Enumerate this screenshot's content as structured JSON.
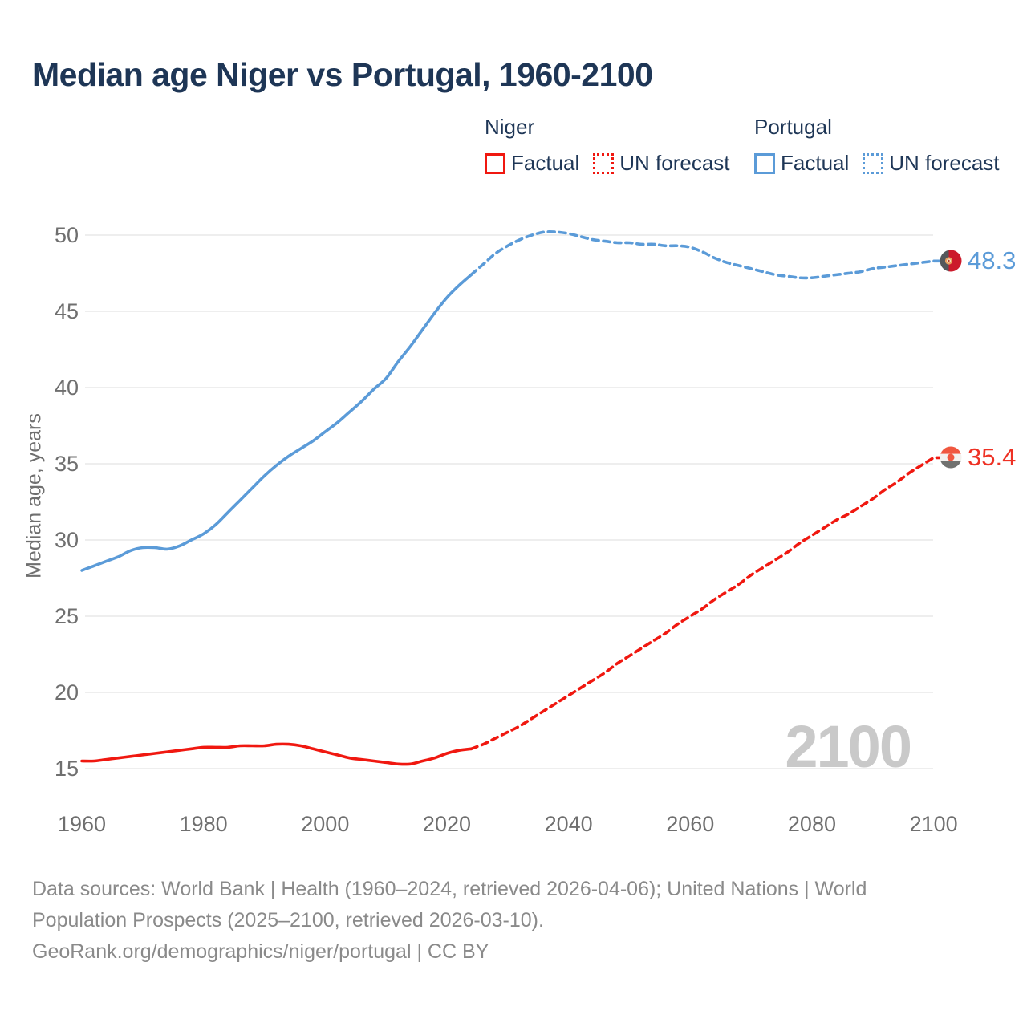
{
  "title": "Median age Niger vs Portugal, 1960-2100",
  "legend": {
    "niger": {
      "label": "Niger",
      "factual": "Factual",
      "forecast": "UN forecast",
      "color": "#f01810"
    },
    "portugal": {
      "label": "Portugal",
      "factual": "Factual",
      "forecast": "UN forecast",
      "color": "#5b9bd8"
    }
  },
  "y_axis": {
    "label": "Median age, years",
    "ticks": [
      50,
      45,
      40,
      35,
      30,
      25,
      20,
      15
    ]
  },
  "x_axis": {
    "ticks": [
      1960,
      1980,
      2000,
      2020,
      2040,
      2060,
      2080,
      2100
    ]
  },
  "end_labels": {
    "portugal": "48.3",
    "niger": "35.4"
  },
  "end_label_colors": {
    "portugal": "#5b9bd8",
    "niger": "#ee3124"
  },
  "watermark": "2100",
  "footer": {
    "line1": "Data sources: World Bank | Health (1960–2024, retrieved 2026-04-06); United Nations | World",
    "line2": "Population Prospects (2025–2100, retrieved 2026-03-10).",
    "line3": "GeoRank.org/demographics/niger/portugal | CC BY"
  },
  "chart_data": {
    "type": "line",
    "title": "Median age Niger vs Portugal, 1960-2100",
    "xlabel": "",
    "ylabel": "Median age, years",
    "xlim": [
      1960,
      2100
    ],
    "ylim": [
      15,
      50
    ],
    "grid": "horizontal",
    "legend_position": "top",
    "series": [
      {
        "name": "Portugal factual",
        "style": "solid",
        "color": "#5b9bd8",
        "x": [
          1960,
          1962,
          1964,
          1966,
          1968,
          1970,
          1972,
          1974,
          1976,
          1978,
          1980,
          1982,
          1984,
          1986,
          1988,
          1990,
          1992,
          1994,
          1996,
          1998,
          2000,
          2002,
          2004,
          2006,
          2008,
          2010,
          2012,
          2014,
          2016,
          2018,
          2020,
          2022,
          2024
        ],
        "y": [
          28.0,
          28.3,
          28.6,
          28.9,
          29.3,
          29.5,
          29.5,
          29.4,
          29.6,
          30.0,
          30.4,
          31.0,
          31.8,
          32.6,
          33.4,
          34.2,
          34.9,
          35.5,
          36.0,
          36.5,
          37.1,
          37.7,
          38.4,
          39.1,
          39.9,
          40.6,
          41.7,
          42.7,
          43.8,
          44.9,
          45.9,
          46.7,
          47.4
        ]
      },
      {
        "name": "Portugal UN forecast",
        "style": "dashed",
        "color": "#5b9bd8",
        "x": [
          2024,
          2026,
          2028,
          2030,
          2032,
          2034,
          2036,
          2038,
          2040,
          2042,
          2044,
          2046,
          2048,
          2050,
          2052,
          2054,
          2056,
          2058,
          2060,
          2062,
          2064,
          2066,
          2068,
          2070,
          2072,
          2074,
          2076,
          2078,
          2080,
          2082,
          2084,
          2086,
          2088,
          2090,
          2092,
          2094,
          2096,
          2098,
          2100
        ],
        "y": [
          47.4,
          48.1,
          48.8,
          49.3,
          49.7,
          50.0,
          50.2,
          50.2,
          50.1,
          49.9,
          49.7,
          49.6,
          49.5,
          49.5,
          49.4,
          49.4,
          49.3,
          49.3,
          49.2,
          48.9,
          48.5,
          48.2,
          48.0,
          47.8,
          47.6,
          47.4,
          47.3,
          47.2,
          47.2,
          47.3,
          47.4,
          47.5,
          47.6,
          47.8,
          47.9,
          48.0,
          48.1,
          48.2,
          48.3
        ]
      },
      {
        "name": "Niger factual",
        "style": "solid",
        "color": "#f01810",
        "x": [
          1960,
          1962,
          1964,
          1966,
          1968,
          1970,
          1972,
          1974,
          1976,
          1978,
          1980,
          1982,
          1984,
          1986,
          1988,
          1990,
          1992,
          1994,
          1996,
          1998,
          2000,
          2002,
          2004,
          2006,
          2008,
          2010,
          2012,
          2014,
          2016,
          2018,
          2020,
          2022,
          2024
        ],
        "y": [
          15.5,
          15.5,
          15.6,
          15.7,
          15.8,
          15.9,
          16.0,
          16.1,
          16.2,
          16.3,
          16.4,
          16.4,
          16.4,
          16.5,
          16.5,
          16.5,
          16.6,
          16.6,
          16.5,
          16.3,
          16.1,
          15.9,
          15.7,
          15.6,
          15.5,
          15.4,
          15.3,
          15.3,
          15.5,
          15.7,
          16.0,
          16.2,
          16.3
        ]
      },
      {
        "name": "Niger UN forecast",
        "style": "dashed",
        "color": "#f01810",
        "x": [
          2024,
          2026,
          2028,
          2030,
          2032,
          2034,
          2036,
          2038,
          2040,
          2042,
          2044,
          2046,
          2048,
          2050,
          2052,
          2054,
          2056,
          2058,
          2060,
          2062,
          2064,
          2066,
          2068,
          2070,
          2072,
          2074,
          2076,
          2078,
          2080,
          2082,
          2084,
          2086,
          2088,
          2090,
          2092,
          2094,
          2096,
          2098,
          2100
        ],
        "y": [
          16.3,
          16.6,
          17.0,
          17.4,
          17.8,
          18.3,
          18.8,
          19.3,
          19.8,
          20.3,
          20.8,
          21.3,
          21.9,
          22.4,
          22.9,
          23.4,
          23.9,
          24.5,
          25.0,
          25.5,
          26.1,
          26.6,
          27.1,
          27.7,
          28.2,
          28.7,
          29.2,
          29.8,
          30.3,
          30.8,
          31.3,
          31.7,
          32.2,
          32.7,
          33.3,
          33.8,
          34.4,
          34.9,
          35.4
        ]
      }
    ]
  }
}
